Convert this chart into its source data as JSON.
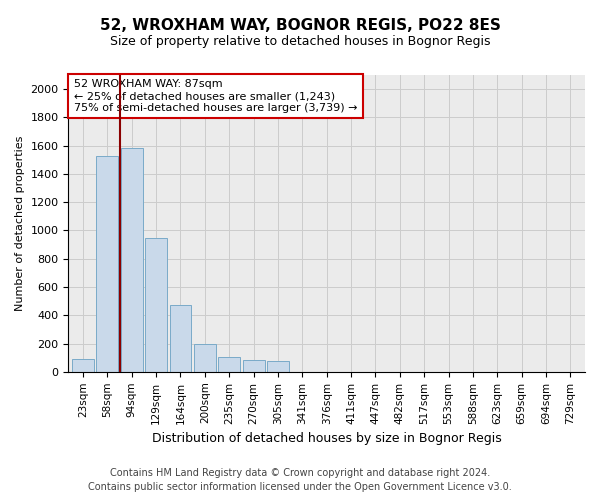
{
  "title_line1": "52, WROXHAM WAY, BOGNOR REGIS, PO22 8ES",
  "title_line2": "Size of property relative to detached houses in Bognor Regis",
  "xlabel": "Distribution of detached houses by size in Bognor Regis",
  "ylabel": "Number of detached properties",
  "footer_line1": "Contains HM Land Registry data © Crown copyright and database right 2024.",
  "footer_line2": "Contains public sector information licensed under the Open Government Licence v3.0.",
  "annotation_line1": "52 WROXHAM WAY: 87sqm",
  "annotation_line2": "← 25% of detached houses are smaller (1,243)",
  "annotation_line3": "75% of semi-detached houses are larger (3,739) →",
  "bar_color": "#c9d9ea",
  "bar_edge_color": "#7aaac8",
  "vline_color": "#8b0000",
  "vline_x": 2,
  "categories": [
    "23sqm",
    "58sqm",
    "94sqm",
    "129sqm",
    "164sqm",
    "200sqm",
    "235sqm",
    "270sqm",
    "305sqm",
    "341sqm",
    "376sqm",
    "411sqm",
    "447sqm",
    "482sqm",
    "517sqm",
    "553sqm",
    "588sqm",
    "623sqm",
    "659sqm",
    "694sqm",
    "729sqm"
  ],
  "bar_heights": [
    90,
    1530,
    1580,
    950,
    470,
    200,
    105,
    85,
    75,
    0,
    0,
    0,
    0,
    0,
    0,
    0,
    0,
    0,
    0,
    0,
    0
  ],
  "ylim": [
    0,
    2100
  ],
  "yticks": [
    0,
    200,
    400,
    600,
    800,
    1000,
    1200,
    1400,
    1600,
    1800,
    2000
  ],
  "grid_color": "#cccccc",
  "bg_color": "#ebebeb",
  "box_facecolor": "#ffffff",
  "box_edgecolor": "#cc0000",
  "title_fontsize": 11,
  "subtitle_fontsize": 9,
  "ylabel_fontsize": 8,
  "xlabel_fontsize": 9,
  "tick_fontsize": 8,
  "annotation_fontsize": 8,
  "footer_fontsize": 7
}
